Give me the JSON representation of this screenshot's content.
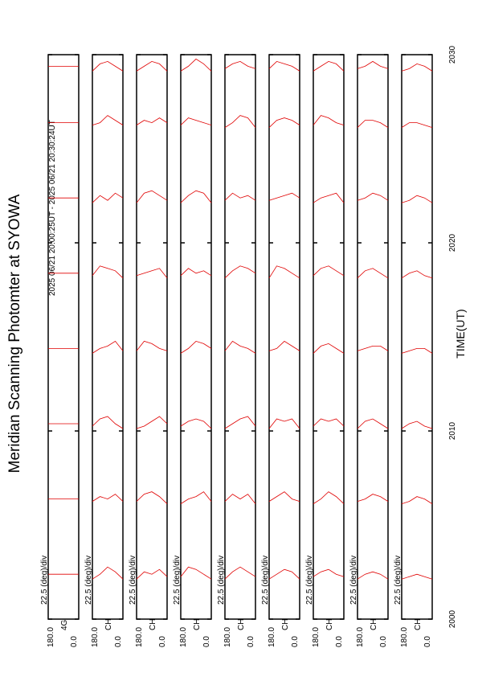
{
  "chart_data": {
    "type": "line",
    "title": "Meridian Scanning Photomter at SYOWA",
    "subtitle": "2025 06/21 20:00:25UT - 2025 06/21 20:30:24UT",
    "x_label": "TIME(UT)",
    "xlim": [
      2000,
      2030
    ],
    "xticks": [
      2000,
      2010,
      2020,
      2030
    ],
    "alim": [
      0,
      180
    ],
    "aticks": [
      {
        "value": 180,
        "label": "180.0"
      },
      {
        "value": 0,
        "label": "0.0"
      }
    ],
    "scale_label": "22.5 (deg)/div",
    "color": "#e00000",
    "angles": [
      0,
      45,
      90,
      135,
      180
    ],
    "times": [
      2002,
      2006,
      2010,
      2014,
      2018,
      2022,
      2026,
      2029
    ],
    "panels": [
      {
        "label": "4G",
        "traces": [
          [
            3,
            3,
            3,
            3,
            3
          ],
          [
            3,
            3,
            3,
            3,
            3
          ],
          [
            3,
            3,
            3,
            3,
            3
          ],
          [
            3,
            3,
            3,
            3,
            3
          ],
          [
            3,
            3,
            3,
            3,
            3
          ],
          [
            3,
            3,
            3,
            3,
            3
          ],
          [
            3,
            3,
            3,
            3,
            3
          ],
          [
            3,
            3,
            3,
            3,
            3
          ]
        ]
      },
      {
        "label": "CH",
        "traces": [
          [
            1,
            4,
            6,
            3,
            1
          ],
          [
            2,
            5,
            3,
            4,
            2
          ],
          [
            1,
            3,
            6,
            5,
            2
          ],
          [
            2,
            6,
            4,
            3,
            1
          ],
          [
            1,
            4,
            5,
            6,
            2
          ],
          [
            3,
            5,
            2,
            4,
            1
          ],
          [
            2,
            4,
            6,
            3,
            2
          ],
          [
            1,
            3,
            5,
            4,
            1
          ]
        ]
      },
      {
        "label": "CH",
        "traces": [
          [
            2,
            5,
            3,
            4,
            1
          ],
          [
            1,
            4,
            6,
            5,
            2
          ],
          [
            3,
            6,
            4,
            2,
            1
          ],
          [
            2,
            3,
            5,
            6,
            2
          ],
          [
            1,
            5,
            4,
            3,
            2
          ],
          [
            2,
            4,
            6,
            5,
            1
          ],
          [
            3,
            5,
            3,
            4,
            2
          ],
          [
            1,
            4,
            5,
            3,
            1
          ]
        ]
      },
      {
        "label": "CH",
        "traces": [
          [
            1,
            3,
            5,
            6,
            2
          ],
          [
            2,
            6,
            4,
            3,
            1
          ],
          [
            1,
            4,
            5,
            4,
            2
          ],
          [
            3,
            5,
            6,
            3,
            1
          ],
          [
            2,
            4,
            3,
            5,
            2
          ],
          [
            1,
            5,
            6,
            4,
            1
          ],
          [
            2,
            3,
            4,
            5,
            2
          ],
          [
            1,
            4,
            6,
            3,
            1
          ]
        ]
      },
      {
        "label": "CH",
        "traces": [
          [
            2,
            4,
            6,
            4,
            1
          ],
          [
            1,
            5,
            3,
            5,
            2
          ],
          [
            2,
            6,
            5,
            3,
            1
          ],
          [
            1,
            3,
            4,
            6,
            2
          ],
          [
            3,
            5,
            6,
            4,
            1
          ],
          [
            2,
            4,
            3,
            5,
            2
          ],
          [
            1,
            5,
            6,
            3,
            1
          ],
          [
            2,
            3,
            5,
            4,
            2
          ]
        ]
      },
      {
        "label": "CH",
        "traces": [
          [
            1,
            4,
            5,
            3,
            1
          ],
          [
            2,
            3,
            6,
            4,
            2
          ],
          [
            1,
            5,
            4,
            5,
            1
          ],
          [
            2,
            4,
            6,
            3,
            2
          ],
          [
            1,
            3,
            5,
            6,
            1
          ],
          [
            3,
            5,
            4,
            3,
            2
          ],
          [
            2,
            4,
            5,
            4,
            1
          ],
          [
            1,
            3,
            4,
            5,
            2
          ]
        ]
      },
      {
        "label": "CH",
        "traces": [
          [
            2,
            3,
            5,
            4,
            2
          ],
          [
            1,
            4,
            6,
            3,
            1
          ],
          [
            2,
            5,
            4,
            5,
            2
          ],
          [
            1,
            3,
            5,
            4,
            1
          ],
          [
            2,
            4,
            6,
            5,
            2
          ],
          [
            1,
            5,
            4,
            3,
            1
          ],
          [
            2,
            3,
            5,
            6,
            2
          ],
          [
            1,
            4,
            5,
            3,
            1
          ]
        ]
      },
      {
        "label": "CH",
        "traces": [
          [
            1,
            3,
            4,
            3,
            1
          ],
          [
            2,
            4,
            5,
            3,
            2
          ],
          [
            1,
            3,
            5,
            4,
            1
          ],
          [
            2,
            4,
            4,
            3,
            2
          ],
          [
            1,
            3,
            5,
            4,
            1
          ],
          [
            2,
            4,
            5,
            3,
            2
          ],
          [
            1,
            3,
            4,
            4,
            1
          ],
          [
            2,
            3,
            5,
            3,
            2
          ]
        ]
      },
      {
        "label": "CH",
        "traces": [
          [
            1,
            2,
            3,
            2,
            1
          ],
          [
            1,
            3,
            4,
            2,
            1
          ],
          [
            1,
            2,
            4,
            3,
            1
          ],
          [
            1,
            3,
            3,
            2,
            1
          ],
          [
            1,
            2,
            4,
            3,
            1
          ],
          [
            1,
            3,
            4,
            2,
            1
          ],
          [
            1,
            2,
            3,
            3,
            1
          ],
          [
            1,
            3,
            4,
            2,
            1
          ]
        ]
      }
    ]
  }
}
